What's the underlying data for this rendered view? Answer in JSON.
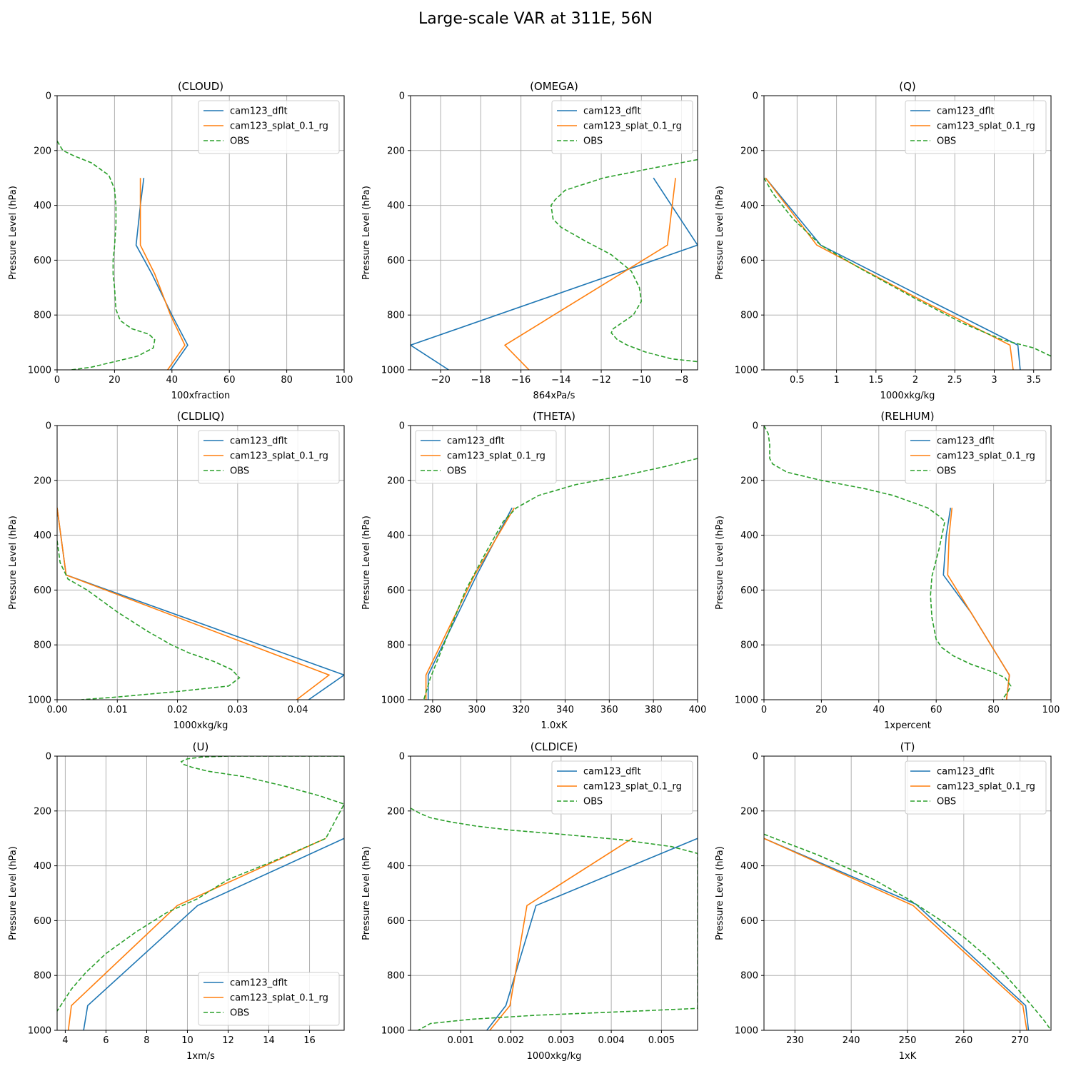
{
  "title": "Large-scale VAR at 311E, 56N",
  "colors": {
    "dflt": "#1f77b4",
    "splat": "#ff7f0e",
    "obs": "#2ca02c",
    "grid": "#b0b0b0",
    "axis": "#000000"
  },
  "chart_data": [
    {
      "type": "line",
      "title": "(CLOUD)",
      "xlabel": "100xfraction",
      "ylabel": "Pressure Level (hPa)",
      "xlim": [
        0,
        100
      ],
      "ylim": [
        1000,
        0
      ],
      "xticks": [
        0,
        20,
        40,
        60,
        80,
        100
      ],
      "yticks": [
        0,
        200,
        400,
        600,
        800,
        1000
      ],
      "grid": true,
      "legend": "top-right",
      "series": [
        {
          "name": "cam123_dflt",
          "style": "solid",
          "color": "dflt",
          "x": [
            30.2,
            29,
            27.5,
            33,
            40,
            45.5,
            39.5
          ],
          "y": [
            300,
            400,
            545,
            650,
            800,
            910,
            1000
          ]
        },
        {
          "name": "cam123_splat_0.1_rg",
          "style": "solid",
          "color": "splat",
          "x": [
            29,
            29,
            29,
            34,
            39.5,
            44.5,
            38.5
          ],
          "y": [
            300,
            400,
            545,
            650,
            800,
            910,
            1000
          ]
        },
        {
          "name": "OBS",
          "style": "dashed",
          "color": "obs",
          "x": [
            0,
            2,
            6,
            12,
            18,
            20,
            20.5,
            20.5,
            20,
            19.5,
            19.5,
            20,
            20.5,
            22,
            26,
            32,
            34,
            33.5,
            28,
            20,
            12,
            5
          ],
          "y": [
            165,
            200,
            220,
            245,
            290,
            340,
            400,
            470,
            550,
            600,
            650,
            700,
            780,
            820,
            850,
            870,
            890,
            920,
            950,
            970,
            990,
            1000
          ]
        }
      ]
    },
    {
      "type": "line",
      "title": "(OMEGA)",
      "xlabel": "864xPa/s",
      "ylabel": "Pressure Level (hPa)",
      "xlim": [
        -21.5,
        -7.2
      ],
      "ylim": [
        1000,
        0
      ],
      "xticks": [
        -20,
        -18,
        -16,
        -14,
        -12,
        -10,
        -8
      ],
      "yticks": [
        0,
        200,
        400,
        600,
        800,
        1000
      ],
      "grid": true,
      "legend": "top-right",
      "series": [
        {
          "name": "cam123_dflt",
          "style": "solid",
          "color": "dflt",
          "x": [
            -9.4,
            -7.2,
            -21.5,
            -19.6
          ],
          "y": [
            300,
            545,
            910,
            1000
          ]
        },
        {
          "name": "cam123_splat_0.1_rg",
          "style": "solid",
          "color": "splat",
          "x": [
            -8.3,
            -8.7,
            -16.8,
            -15.6
          ],
          "y": [
            300,
            545,
            910,
            1000
          ]
        },
        {
          "name": "OBS",
          "style": "dashed",
          "color": "obs",
          "x": [
            -7.2,
            -9.5,
            -11.9,
            -13.8,
            -14.3,
            -14.5,
            -14.4,
            -14,
            -12.8,
            -11.5,
            -10.5,
            -10.1,
            -10,
            -10.4,
            -11.4,
            -11.5,
            -11.2,
            -10.7,
            -9.8,
            -8.5,
            -7.2
          ],
          "y": [
            233,
            265,
            300,
            345,
            380,
            400,
            450,
            480,
            530,
            580,
            640,
            700,
            750,
            800,
            850,
            865,
            890,
            910,
            935,
            960,
            970
          ]
        }
      ]
    },
    {
      "type": "line",
      "title": "(Q)",
      "xlabel": "1000xkg/kg",
      "ylabel": "Pressure Level (hPa)",
      "xlim": [
        0.08,
        3.72
      ],
      "ylim": [
        1000,
        0
      ],
      "xticks": [
        0.5,
        1.0,
        1.5,
        2.0,
        2.5,
        3.0,
        3.5
      ],
      "yticks": [
        0,
        200,
        400,
        600,
        800,
        1000
      ],
      "grid": true,
      "legend": "top-right",
      "series": [
        {
          "name": "cam123_dflt",
          "style": "solid",
          "color": "dflt",
          "x": [
            0.1,
            0.8,
            2.2,
            3.3,
            3.33
          ],
          "y": [
            300,
            545,
            750,
            910,
            1000
          ]
        },
        {
          "name": "cam123_splat_0.1_rg",
          "style": "solid",
          "color": "splat",
          "x": [
            0.1,
            0.75,
            2.1,
            3.2,
            3.24
          ],
          "y": [
            300,
            545,
            750,
            910,
            1000
          ]
        },
        {
          "name": "OBS",
          "style": "dashed",
          "color": "obs",
          "x": [
            0.08,
            0.2,
            0.45,
            0.8,
            1.3,
            2.0,
            2.6,
            3.1,
            3.5,
            3.72
          ],
          "y": [
            300,
            360,
            450,
            545,
            630,
            740,
            830,
            890,
            920,
            950
          ]
        }
      ]
    },
    {
      "type": "line",
      "title": "(CLDLIQ)",
      "xlabel": "1000xkg/kg",
      "ylabel": "Pressure Level (hPa)",
      "xlim": [
        0,
        0.0477
      ],
      "ylim": [
        1000,
        0
      ],
      "xticks": [
        0.0,
        0.01,
        0.02,
        0.03,
        0.04
      ],
      "xtick_labels": [
        "0.00",
        "0.01",
        "0.02",
        "0.03",
        "0.04"
      ],
      "yticks": [
        0,
        200,
        400,
        600,
        800,
        1000
      ],
      "grid": true,
      "legend": "top-right",
      "series": [
        {
          "name": "cam123_dflt",
          "style": "solid",
          "color": "dflt",
          "x": [
            0.0,
            0.0015,
            0.0477,
            0.0418
          ],
          "y": [
            300,
            545,
            910,
            1000
          ]
        },
        {
          "name": "cam123_splat_0.1_rg",
          "style": "solid",
          "color": "splat",
          "x": [
            0.0,
            0.0015,
            0.0452,
            0.0398
          ],
          "y": [
            300,
            545,
            910,
            1000
          ]
        },
        {
          "name": "OBS",
          "style": "dashed",
          "color": "obs",
          "x": [
            0.0,
            0.0005,
            0.0018,
            0.005,
            0.01,
            0.015,
            0.019,
            0.022,
            0.026,
            0.029,
            0.0303,
            0.0285,
            0.02,
            0.01,
            0.004
          ],
          "y": [
            420,
            500,
            560,
            600,
            680,
            750,
            800,
            830,
            860,
            890,
            920,
            950,
            970,
            990,
            1000
          ]
        }
      ]
    },
    {
      "type": "line",
      "title": "(THETA)",
      "xlabel": "1.0xK",
      "ylabel": "Pressure Level (hPa)",
      "xlim": [
        270,
        400
      ],
      "ylim": [
        1000,
        0
      ],
      "xticks": [
        280,
        300,
        320,
        340,
        360,
        380,
        400
      ],
      "yticks": [
        0,
        200,
        400,
        600,
        800,
        1000
      ],
      "grid": true,
      "legend": "top-left",
      "series": [
        {
          "name": "cam123_dflt",
          "style": "solid",
          "color": "dflt",
          "x": [
            316,
            300,
            278,
            278
          ],
          "y": [
            300,
            545,
            910,
            1000
          ]
        },
        {
          "name": "cam123_splat_0.1_rg",
          "style": "solid",
          "color": "splat",
          "x": [
            317,
            299,
            277,
            277
          ],
          "y": [
            300,
            545,
            910,
            1000
          ]
        },
        {
          "name": "OBS",
          "style": "dashed",
          "color": "obs",
          "x": [
            400,
            385,
            368,
            345,
            328,
            318,
            312,
            305,
            295,
            285,
            279,
            276
          ],
          "y": [
            120,
            150,
            180,
            215,
            255,
            300,
            350,
            450,
            600,
            800,
            920,
            1000
          ]
        }
      ]
    },
    {
      "type": "line",
      "title": "(RELHUM)",
      "xlabel": "1xpercent",
      "ylabel": "Pressure Level (hPa)",
      "xlim": [
        0,
        100
      ],
      "ylim": [
        1000,
        0
      ],
      "xticks": [
        0,
        20,
        40,
        60,
        80,
        100
      ],
      "yticks": [
        0,
        200,
        400,
        600,
        800,
        1000
      ],
      "grid": true,
      "legend": "top-right",
      "series": [
        {
          "name": "cam123_dflt",
          "style": "solid",
          "color": "dflt",
          "x": [
            65,
            63.5,
            62.5,
            72,
            85.5,
            84.5
          ],
          "y": [
            300,
            400,
            545,
            680,
            910,
            1000
          ]
        },
        {
          "name": "cam123_splat_0.1_rg",
          "style": "solid",
          "color": "splat",
          "x": [
            65.5,
            64.5,
            64,
            72,
            85.5,
            84.5
          ],
          "y": [
            300,
            400,
            545,
            680,
            910,
            1000
          ]
        },
        {
          "name": "OBS",
          "style": "dashed",
          "color": "obs",
          "x": [
            0,
            1.5,
            2,
            2,
            3,
            8,
            20,
            35,
            45,
            57,
            61,
            63,
            61,
            58.5,
            58,
            58.5,
            60,
            62,
            66,
            72,
            80,
            84,
            86,
            85,
            83
          ],
          "y": [
            0,
            30,
            70,
            120,
            140,
            170,
            200,
            230,
            255,
            300,
            330,
            350,
            450,
            550,
            620,
            700,
            780,
            810,
            840,
            870,
            900,
            920,
            950,
            970,
            1000
          ]
        }
      ]
    },
    {
      "type": "line",
      "title": "(U)",
      "xlabel": "1xm/s",
      "ylabel": "Pressure Level (hPa)",
      "xlim": [
        3.6,
        17.7
      ],
      "ylim": [
        1000,
        0
      ],
      "xticks": [
        4,
        6,
        8,
        10,
        12,
        14,
        16
      ],
      "yticks": [
        0,
        200,
        400,
        600,
        800,
        1000
      ],
      "grid": true,
      "legend": "bottom-right",
      "series": [
        {
          "name": "cam123_dflt",
          "style": "solid",
          "color": "dflt",
          "x": [
            17.7,
            10.5,
            5.1,
            4.9
          ],
          "y": [
            300,
            545,
            910,
            1000
          ]
        },
        {
          "name": "cam123_splat_0.1_rg",
          "style": "solid",
          "color": "splat",
          "x": [
            16.8,
            9.5,
            4.3,
            4.15
          ],
          "y": [
            300,
            545,
            910,
            1000
          ]
        },
        {
          "name": "OBS",
          "style": "dashed",
          "color": "obs",
          "x": [
            17.7,
            14.5,
            12,
            10.7,
            10,
            9.7,
            9.8,
            10.2,
            11,
            12.8,
            14.8,
            16.5,
            17.7,
            16.8,
            14,
            12,
            10.5,
            9,
            7.5,
            6,
            5,
            4.3,
            3.6
          ],
          "y": [
            0,
            0,
            0,
            3,
            10,
            20,
            30,
            40,
            55,
            75,
            110,
            145,
            175,
            300,
            390,
            450,
            520,
            570,
            640,
            720,
            790,
            850,
            930
          ]
        }
      ]
    },
    {
      "type": "line",
      "title": "(CLDICE)",
      "xlabel": "1000xkg/kg",
      "ylabel": "Pressure Level (hPa)",
      "xlim": [
        0,
        0.00572
      ],
      "ylim": [
        1000,
        0
      ],
      "xticks": [
        0.001,
        0.002,
        0.003,
        0.004,
        0.005
      ],
      "yticks": [
        0,
        200,
        400,
        600,
        800,
        1000
      ],
      "grid": true,
      "legend": "top-right",
      "series": [
        {
          "name": "cam123_dflt",
          "style": "solid",
          "color": "dflt",
          "x": [
            0.00572,
            0.0025,
            0.0019,
            0.00152
          ],
          "y": [
            300,
            545,
            910,
            1000
          ]
        },
        {
          "name": "cam123_splat_0.1_rg",
          "style": "solid",
          "color": "splat",
          "x": [
            0.00442,
            0.00232,
            0.00198,
            0.00158
          ],
          "y": [
            300,
            545,
            910,
            1000
          ]
        },
        {
          "name": "OBS",
          "style": "dashed",
          "color": "obs",
          "x": [
            0.0,
            0.0002,
            0.0004,
            0.0008,
            0.0013,
            0.002,
            0.003,
            0.0042,
            0.0052,
            0.00572,
            0.00572,
            0.0045,
            0.0025,
            0.0012,
            0.0004,
            0.00015
          ],
          "y": [
            190,
            210,
            225,
            240,
            255,
            270,
            285,
            305,
            330,
            355,
            920,
            930,
            945,
            960,
            975,
            1000
          ]
        }
      ]
    },
    {
      "type": "line",
      "title": "(T)",
      "xlabel": "1xK",
      "ylabel": "Pressure Level (hPa)",
      "xlim": [
        224.5,
        275.5
      ],
      "ylim": [
        1000,
        0
      ],
      "xticks": [
        230,
        240,
        250,
        260,
        270
      ],
      "yticks": [
        0,
        200,
        400,
        600,
        800,
        1000
      ],
      "grid": true,
      "legend": "top-right",
      "series": [
        {
          "name": "cam123_dflt",
          "style": "solid",
          "color": "dflt",
          "x": [
            224.5,
            251.5,
            271,
            271.5
          ],
          "y": [
            300,
            540,
            910,
            1000
          ]
        },
        {
          "name": "cam123_splat_0.1_rg",
          "style": "solid",
          "color": "splat",
          "x": [
            224.5,
            251,
            270.5,
            271.2
          ],
          "y": [
            300,
            545,
            910,
            1000
          ]
        },
        {
          "name": "OBS",
          "style": "dashed",
          "color": "obs",
          "x": [
            224.5,
            234,
            244,
            250,
            253,
            256,
            260,
            264,
            267,
            270,
            272.5,
            274.5,
            275.5
          ],
          "y": [
            285,
            360,
            450,
            520,
            560,
            600,
            660,
            730,
            790,
            860,
            920,
            970,
            1000
          ]
        }
      ]
    }
  ]
}
